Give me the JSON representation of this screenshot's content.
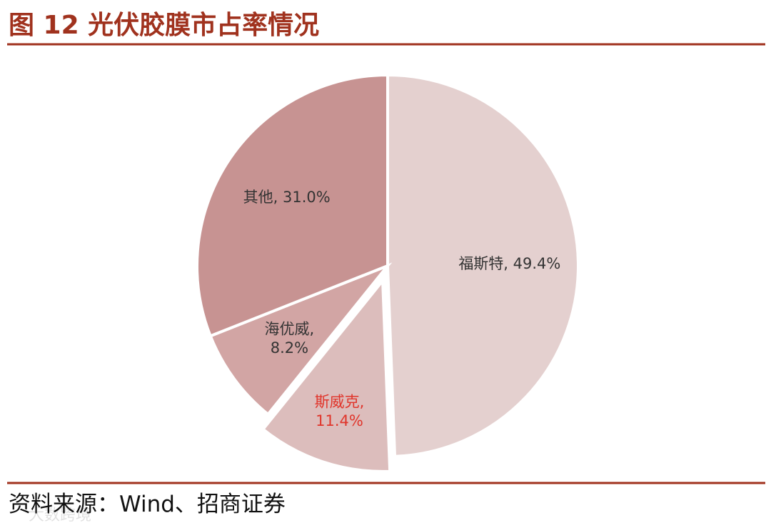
{
  "chart_data": {
    "type": "pie",
    "title": "图 12  光伏胶膜市占率情况",
    "source": "资料来源：Wind、招商证券",
    "watermark": "大数跨境",
    "values": [
      49.4,
      11.4,
      8.2,
      31.0
    ],
    "value_labels": [
      "福斯特, 49.4%",
      "斯威克,\n11.4%",
      "海优威,\n8.2%",
      "其他, 31.0%"
    ],
    "colors": [
      "#e4d0cf",
      "#dcbdbc",
      "#d2a5a4",
      "#c79392"
    ],
    "label_colors": [
      "#333333",
      "#e0352b",
      "#333333",
      "#333333"
    ],
    "exploded": [
      false,
      true,
      false,
      false
    ]
  }
}
